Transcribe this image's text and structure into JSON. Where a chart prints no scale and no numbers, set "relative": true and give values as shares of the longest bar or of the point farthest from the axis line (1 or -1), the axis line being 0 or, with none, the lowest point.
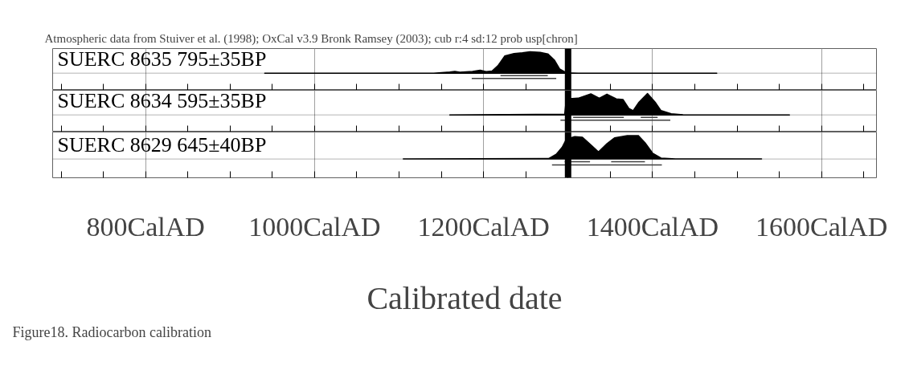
{
  "chart_data": [
    {
      "type": "area",
      "relative": true,
      "title": "Atmospheric data from Stuiver et al. (1998); OxCal v3.9 Bronk Ramsey (2003); cub r:4 sd:12 prob usp[chron]",
      "xlim": [
        690,
        1665
      ],
      "tick_labels": false,
      "grid": "x",
      "legend": false,
      "xticks": [
        {
          "value": 700,
          "label": null
        },
        {
          "value": 750,
          "label": null
        },
        800,
        {
          "value": 850,
          "label": null
        },
        {
          "value": 900,
          "label": null
        },
        {
          "value": 950,
          "label": null
        },
        1000,
        {
          "value": 1050,
          "label": null
        },
        {
          "value": 1100,
          "label": null
        },
        {
          "value": 1150,
          "label": null
        },
        1200,
        {
          "value": 1250,
          "label": null
        },
        {
          "value": 1300,
          "label": null
        },
        {
          "value": 1350,
          "label": null
        },
        1400,
        {
          "value": 1450,
          "label": null
        },
        {
          "value": 1500,
          "label": null
        },
        {
          "value": 1550,
          "label": null
        },
        1600,
        {
          "value": 1650,
          "label": null
        }
      ],
      "ref_lines": [
        {
          "axis": "x",
          "value": 1300,
          "color": "#000000"
        }
      ],
      "series": [
        {
          "name": "SUERC 8635  795±35BP",
          "color": "#000000",
          "x": [
            941,
            1141,
            1160,
            1166,
            1172,
            1187,
            1196,
            1203,
            1210,
            1217,
            1225,
            1236,
            1246,
            1255,
            1267,
            1276,
            1284,
            1290,
            1298,
            1312,
            1476
          ],
          "values": [
            0,
            0,
            0.05,
            0.08,
            0.04,
            0.08,
            0.14,
            0.07,
            0.1,
            0.35,
            0.8,
            0.92,
            0.95,
            1,
            0.97,
            0.9,
            0.6,
            0.2,
            0.02,
            0,
            0
          ]
        },
        {
          "type": "line",
          "color": "#404040",
          "x": [
            1220,
            1276
          ],
          "values": [
            -0.12,
            -0.12
          ]
        },
        {
          "type": "line",
          "color": "#404040",
          "x": [
            1186,
            1286
          ],
          "values": [
            -0.25,
            -0.25
          ]
        }
      ]
    },
    {
      "type": "area",
      "relative": true,
      "xlim": [
        690,
        1665
      ],
      "tick_labels": false,
      "grid": "x",
      "legend": false,
      "xticks": [
        {
          "value": 700,
          "label": null
        },
        {
          "value": 750,
          "label": null
        },
        800,
        {
          "value": 850,
          "label": null
        },
        {
          "value": 900,
          "label": null
        },
        {
          "value": 950,
          "label": null
        },
        1000,
        {
          "value": 1050,
          "label": null
        },
        {
          "value": 1100,
          "label": null
        },
        {
          "value": 1150,
          "label": null
        },
        1200,
        {
          "value": 1250,
          "label": null
        },
        {
          "value": 1300,
          "label": null
        },
        {
          "value": 1350,
          "label": null
        },
        1400,
        {
          "value": 1450,
          "label": null
        },
        {
          "value": 1500,
          "label": null
        },
        {
          "value": 1550,
          "label": null
        },
        1600,
        {
          "value": 1650,
          "label": null
        }
      ],
      "ref_lines": [
        {
          "axis": "x",
          "value": 1300,
          "color": "#000000"
        }
      ],
      "series": [
        {
          "name": "SUERC 8634  595±35BP",
          "color": "#000000",
          "x": [
            1160,
            1296,
            1298,
            1312,
            1327,
            1337,
            1346,
            1357,
            1365,
            1372,
            1377,
            1384,
            1394,
            1403,
            1410,
            1422,
            1436,
            1562
          ],
          "values": [
            0,
            0.03,
            0.75,
            0.78,
            0.98,
            0.78,
            0.97,
            0.75,
            0.72,
            0.3,
            0.2,
            0.6,
            1,
            0.6,
            0.2,
            0.05,
            0.01,
            0
          ]
        },
        {
          "type": "line",
          "color": "#404040",
          "x": [
            1306,
            1366
          ],
          "values": [
            -0.12,
            -0.12
          ]
        },
        {
          "type": "line",
          "color": "#404040",
          "x": [
            1386,
            1406
          ],
          "values": [
            -0.12,
            -0.12
          ]
        },
        {
          "type": "line",
          "color": "#404040",
          "x": [
            1291,
            1421
          ],
          "values": [
            -0.25,
            -0.25
          ]
        }
      ]
    },
    {
      "type": "area",
      "relative": true,
      "xlim": [
        690,
        1665
      ],
      "tick_labels": "x",
      "grid": "x",
      "legend": false,
      "xlabel": "Calibrated date",
      "annotations": [
        "Figure18. Radiocarbon calibration"
      ],
      "xticks": [
        {
          "value": 700,
          "label": null
        },
        {
          "value": 750,
          "label": null
        },
        {
          "value": 800,
          "label": "800CalAD"
        },
        {
          "value": 850,
          "label": null
        },
        {
          "value": 900,
          "label": null
        },
        {
          "value": 950,
          "label": null
        },
        {
          "value": 1000,
          "label": "1000CalAD"
        },
        {
          "value": 1050,
          "label": null
        },
        {
          "value": 1100,
          "label": null
        },
        {
          "value": 1150,
          "label": null
        },
        {
          "value": 1200,
          "label": "1200CalAD"
        },
        {
          "value": 1250,
          "label": null
        },
        {
          "value": 1300,
          "label": null
        },
        {
          "value": 1350,
          "label": null
        },
        {
          "value": 1400,
          "label": "1400CalAD"
        },
        {
          "value": 1450,
          "label": null
        },
        {
          "value": 1500,
          "label": null
        },
        {
          "value": 1550,
          "label": null
        },
        {
          "value": 1600,
          "label": "1600CalAD"
        },
        {
          "value": 1650,
          "label": null
        }
      ],
      "ref_lines": [
        {
          "axis": "x",
          "value": 1300,
          "color": "#000000"
        }
      ],
      "series": [
        {
          "name": "SUERC 8629  645±40BP",
          "color": "#000000",
          "x": [
            1105,
            1277,
            1286,
            1293,
            1298,
            1308,
            1317,
            1327,
            1336,
            1346,
            1355,
            1370,
            1383,
            1391,
            1400,
            1410,
            1427,
            1529
          ],
          "values": [
            0,
            0.02,
            0.2,
            0.5,
            0.85,
            0.95,
            0.93,
            0.6,
            0.3,
            0.65,
            0.9,
            1,
            1,
            0.7,
            0.25,
            0.04,
            0,
            0
          ]
        },
        {
          "type": "line",
          "color": "#404040",
          "x": [
            1296,
            1326
          ],
          "values": [
            -0.12,
            -0.12
          ]
        },
        {
          "type": "line",
          "color": "#404040",
          "x": [
            1351,
            1391
          ],
          "values": [
            -0.12,
            -0.12
          ]
        },
        {
          "type": "line",
          "color": "#404040",
          "x": [
            1281,
            1411
          ],
          "values": [
            -0.25,
            -0.25
          ]
        }
      ]
    }
  ]
}
